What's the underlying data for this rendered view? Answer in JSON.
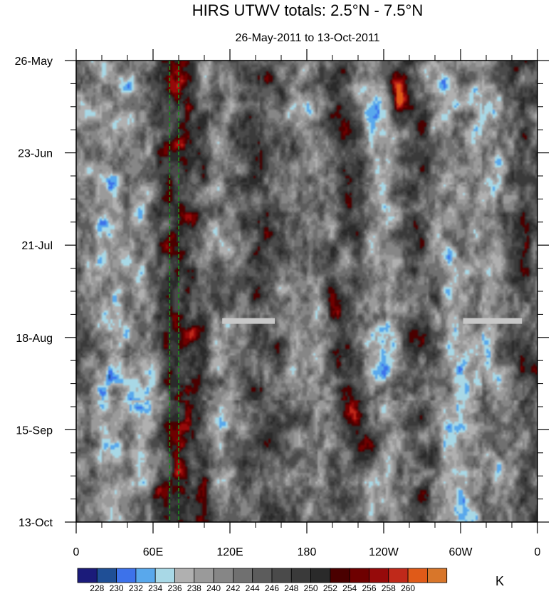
{
  "chart_data": {
    "type": "heatmap",
    "title": "HIRS UTWV totals: 2.5°N - 7.5°N",
    "subtitle": "26-May-2011 to 13-Oct-2011",
    "x_ticks": [
      "0",
      "60E",
      "120E",
      "180",
      "120W",
      "60W",
      "0"
    ],
    "x_range_deg_east": [
      0,
      360
    ],
    "y_ticks": [
      "26-May",
      "23-Jun",
      "21-Jul",
      "18-Aug",
      "15-Sep",
      "13-Oct"
    ],
    "y_range": [
      "26-May-2011",
      "13-Oct-2011"
    ],
    "colorbar": {
      "unit": "K",
      "levels": [
        "228",
        "230",
        "232",
        "234",
        "236",
        "238",
        "240",
        "242",
        "244",
        "246",
        "248",
        "250",
        "252",
        "254",
        "256",
        "258",
        "260"
      ],
      "colors": [
        "#1b1b7a",
        "#1f4f96",
        "#3d72ea",
        "#59a8ec",
        "#a8d8e6",
        "#b0b0b0",
        "#9a9a9a",
        "#868686",
        "#707070",
        "#5c5c5c",
        "#4a4a4a",
        "#3a3a3a",
        "#2a2a2a",
        "#4a0000",
        "#6e0000",
        "#960a0a",
        "#c0291a",
        "#e05a18",
        "#d8762a"
      ]
    },
    "reference_lines_deg_east": [
      73,
      80
    ],
    "missing_data_segments": [
      {
        "lon_start": 114,
        "lon_end": 155,
        "date": "2011-08-13"
      },
      {
        "lon_start": 302,
        "lon_end": 348,
        "date": "2011-08-13"
      }
    ],
    "field_description_k": {
      "moist_bands_lon": [
        20,
        48,
        100,
        185,
        235,
        290,
        320
      ],
      "dry_bands_lon": [
        65,
        80,
        90,
        140,
        200,
        260,
        345
      ],
      "warm_patches": [
        {
          "lon": 65,
          "day": 130,
          "value": 256
        },
        {
          "lon": 200,
          "day": 75,
          "value": 257
        },
        {
          "lon": 215,
          "day": 105,
          "value": 256
        },
        {
          "lon": 230,
          "day": 118,
          "value": 256
        },
        {
          "lon": 253,
          "day": 10,
          "value": 258
        },
        {
          "lon": 210,
          "day": 20,
          "value": 256
        },
        {
          "lon": 220,
          "day": 40,
          "value": 255
        }
      ]
    }
  }
}
